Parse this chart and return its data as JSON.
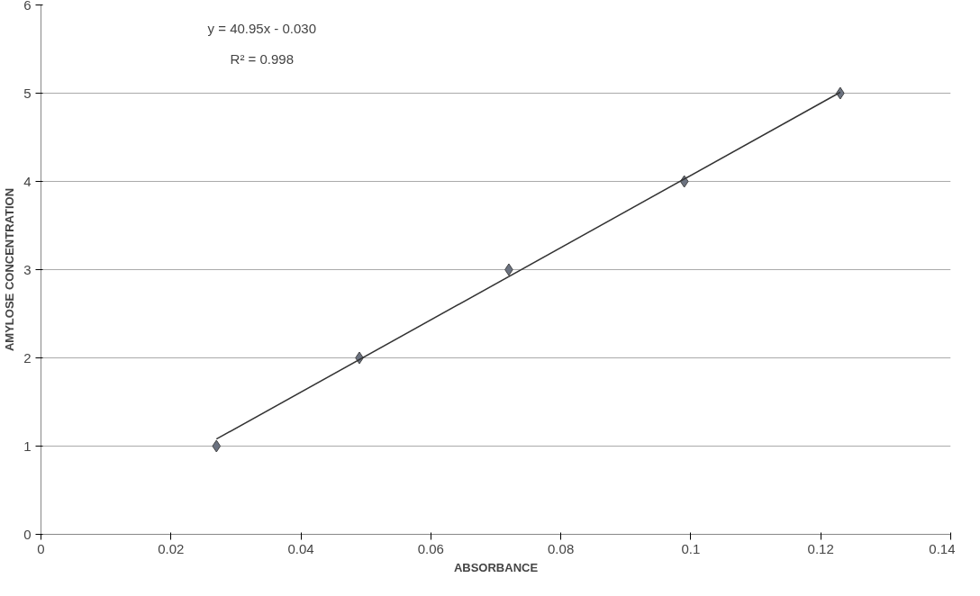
{
  "chart_data": {
    "type": "scatter",
    "xlabel": "ABSORBANCE",
    "ylabel": "AMYLOSE CONCENTRATION",
    "x": [
      0.027,
      0.049,
      0.072,
      0.099,
      0.123
    ],
    "series": [
      {
        "color": "#6b7280",
        "values": [
          1.0,
          2.0,
          3.0,
          4.0,
          5.0
        ],
        "marker": "diamond"
      },
      {
        "type": "line",
        "color": "#333333",
        "x": [
          0.027,
          0.123
        ],
        "values": [
          1.08,
          5.01
        ],
        "marker": "none",
        "line_style": "solid"
      }
    ],
    "annotations": [
      {
        "text": "y = 40.95x - 0.030"
      },
      {
        "text": "R² = 0.998"
      }
    ],
    "xlim": [
      0,
      0.14
    ],
    "xticks": [
      0,
      0.02,
      0.04,
      0.06,
      0.08,
      0.1,
      0.12,
      0.14
    ],
    "ylim": [
      0,
      6
    ],
    "yticks": [
      0,
      1,
      2,
      3,
      4,
      5,
      6
    ],
    "grid": "y"
  }
}
